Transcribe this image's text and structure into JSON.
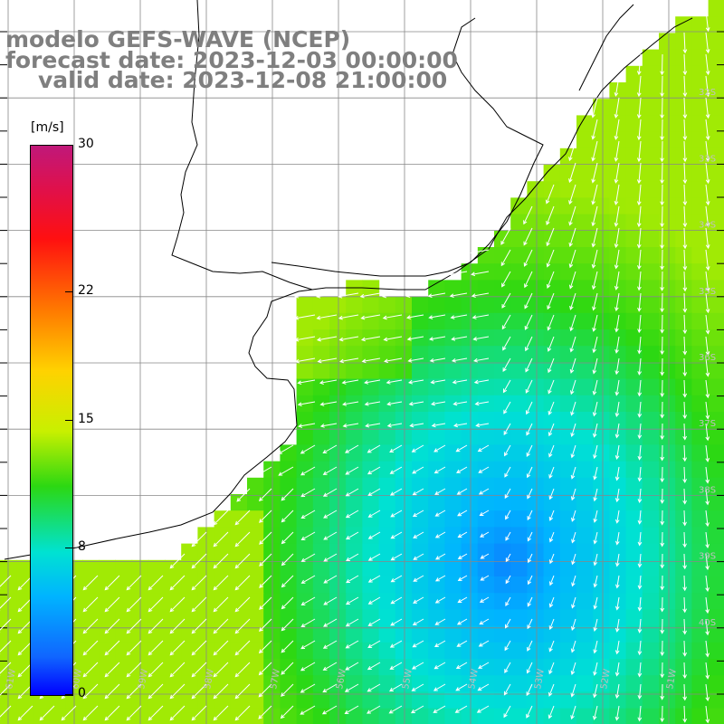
{
  "titles": {
    "line1": "modelo GEFS-WAVE (NCEP)",
    "line2": "forecast date: 2023-12-03 00:00:00",
    "line3": "valid date: 2023-12-08 21:00:00"
  },
  "colorbar": {
    "unit": "[m/s]",
    "ticks": [
      {
        "label": "30",
        "value": 30
      },
      {
        "label": "22",
        "value": 22
      },
      {
        "label": "15",
        "value": 15
      },
      {
        "label": "8",
        "value": 8
      },
      {
        "label": "0",
        "value": 0
      }
    ],
    "colors": [
      "#c0187a",
      "#ff1010",
      "#ff7a00",
      "#ffd200",
      "#2cd812",
      "#00e2d2",
      "#00b4ff",
      "#1066ff",
      "#0000ff"
    ]
  },
  "map": {
    "lon_labels": [
      "61W",
      "60W",
      "59W",
      "58W",
      "57W",
      "56W",
      "55W",
      "54W",
      "53W",
      "52W",
      "51W"
    ],
    "lat_labels": [
      "32S",
      "33S",
      "34S",
      "35S",
      "36S",
      "37S",
      "38S",
      "39S",
      "40S"
    ],
    "lon_range": [
      -61.5,
      -50.5
    ],
    "lat_range": [
      -30.5,
      -41.5
    ],
    "field": "wind speed with direction arrows"
  }
}
